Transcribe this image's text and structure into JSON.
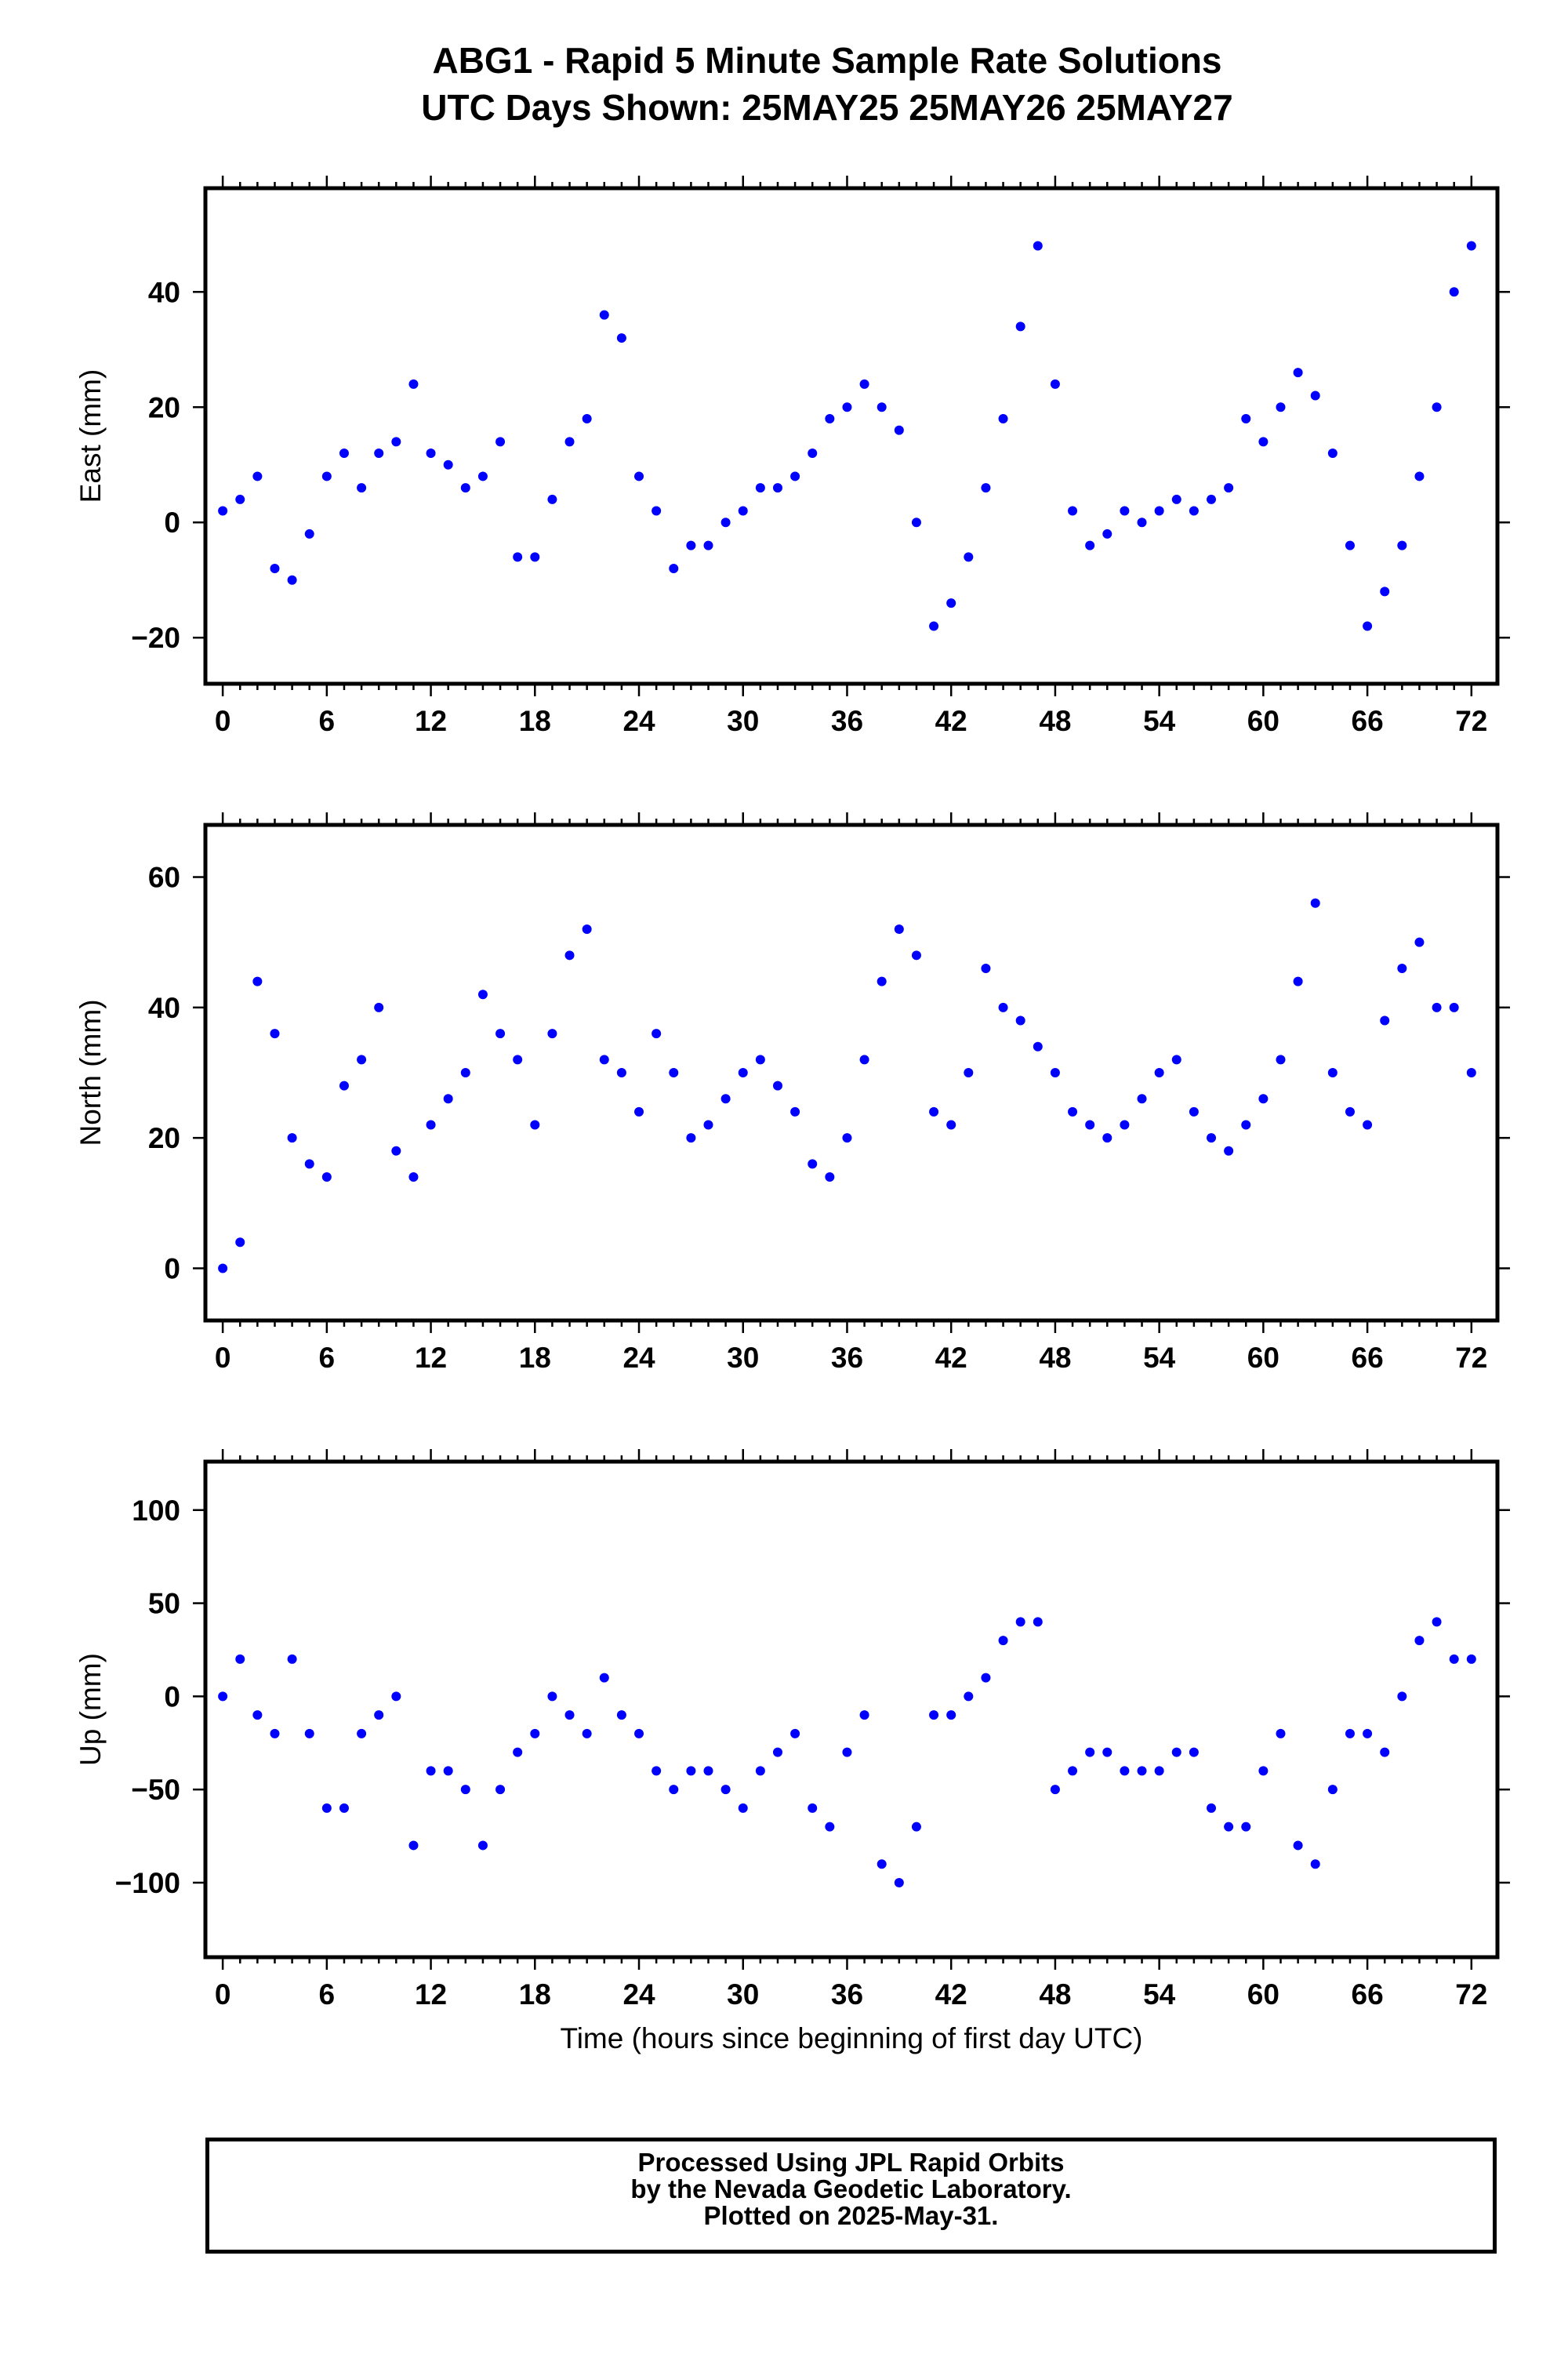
{
  "title": {
    "line1": "ABG1 - Rapid 5 Minute Sample Rate Solutions",
    "line2": "UTC Days Shown:  25MAY25 25MAY26 25MAY27"
  },
  "footer": {
    "line1": "Processed Using JPL Rapid Orbits",
    "line2": "by the Nevada Geodetic Laboratory.",
    "line3": "Plotted on 2025-May-31."
  },
  "colors": {
    "points": "#0000ff",
    "frame": "#000000"
  },
  "chart_data": [
    {
      "type": "scatter",
      "ylabel": "East (mm)",
      "xlabel": "",
      "xlim": [
        -1,
        73.5
      ],
      "ylim": [
        -28,
        58
      ],
      "xticks": [
        0,
        6,
        12,
        18,
        24,
        30,
        36,
        42,
        48,
        54,
        60,
        66,
        72
      ],
      "yticks": [
        -20,
        0,
        20,
        40
      ],
      "grid": false,
      "x": [
        0,
        1,
        2,
        3,
        4,
        5,
        6,
        7,
        8,
        9,
        10,
        11,
        12,
        13,
        14,
        15,
        16,
        17,
        18,
        19,
        20,
        21,
        22,
        23,
        24,
        25,
        26,
        27,
        28,
        29,
        30,
        31,
        32,
        33,
        34,
        35,
        36,
        37,
        38,
        39,
        40,
        41,
        42,
        43,
        44,
        45,
        46,
        47,
        48,
        49,
        50,
        51,
        52,
        53,
        54,
        55,
        56,
        57,
        58,
        59,
        60,
        61,
        62,
        63,
        64,
        65,
        66,
        67,
        68,
        69,
        70,
        71,
        72
      ],
      "y": [
        2,
        4,
        8,
        -8,
        -10,
        -2,
        8,
        12,
        6,
        12,
        14,
        24,
        12,
        10,
        6,
        8,
        14,
        -6,
        -6,
        4,
        14,
        18,
        36,
        32,
        8,
        2,
        -8,
        -4,
        -4,
        0,
        2,
        6,
        6,
        8,
        12,
        18,
        20,
        24,
        20,
        16,
        0,
        -18,
        -14,
        -6,
        6,
        18,
        34,
        48,
        24,
        2,
        -4,
        -2,
        2,
        0,
        2,
        4,
        2,
        4,
        6,
        18,
        14,
        20,
        26,
        22,
        12,
        -4,
        -18,
        -12,
        -4,
        8,
        20,
        40,
        48
      ]
    },
    {
      "type": "scatter",
      "ylabel": "North (mm)",
      "xlabel": "",
      "xlim": [
        -1,
        73.5
      ],
      "ylim": [
        -8,
        68
      ],
      "xticks": [
        0,
        6,
        12,
        18,
        24,
        30,
        36,
        42,
        48,
        54,
        60,
        66,
        72
      ],
      "yticks": [
        0,
        20,
        40,
        60
      ],
      "grid": false,
      "x": [
        0,
        1,
        2,
        3,
        4,
        5,
        6,
        7,
        8,
        9,
        10,
        11,
        12,
        13,
        14,
        15,
        16,
        17,
        18,
        19,
        20,
        21,
        22,
        23,
        24,
        25,
        26,
        27,
        28,
        29,
        30,
        31,
        32,
        33,
        34,
        35,
        36,
        37,
        38,
        39,
        40,
        41,
        42,
        43,
        44,
        45,
        46,
        47,
        48,
        49,
        50,
        51,
        52,
        53,
        54,
        55,
        56,
        57,
        58,
        59,
        60,
        61,
        62,
        63,
        64,
        65,
        66,
        67,
        68,
        69,
        70,
        71,
        72
      ],
      "y": [
        0,
        4,
        44,
        36,
        20,
        16,
        14,
        28,
        32,
        40,
        18,
        14,
        22,
        26,
        30,
        42,
        36,
        32,
        22,
        36,
        48,
        52,
        32,
        30,
        24,
        36,
        30,
        20,
        22,
        26,
        30,
        32,
        28,
        24,
        16,
        14,
        20,
        32,
        44,
        52,
        48,
        24,
        22,
        30,
        46,
        40,
        38,
        34,
        30,
        24,
        22,
        20,
        22,
        26,
        30,
        32,
        24,
        20,
        18,
        22,
        26,
        32,
        44,
        56,
        30,
        24,
        22,
        38,
        46,
        50,
        40,
        40,
        30
      ]
    },
    {
      "type": "scatter",
      "ylabel": "Up (mm)",
      "xlabel": "Time (hours since beginning of first day UTC)",
      "xlim": [
        -1,
        73.5
      ],
      "ylim": [
        -140,
        126
      ],
      "xticks": [
        0,
        6,
        12,
        18,
        24,
        30,
        36,
        42,
        48,
        54,
        60,
        66,
        72
      ],
      "yticks": [
        -100,
        -50,
        0,
        50,
        100
      ],
      "grid": false,
      "x": [
        0,
        1,
        2,
        3,
        4,
        5,
        6,
        7,
        8,
        9,
        10,
        11,
        12,
        13,
        14,
        15,
        16,
        17,
        18,
        19,
        20,
        21,
        22,
        23,
        24,
        25,
        26,
        27,
        28,
        29,
        30,
        31,
        32,
        33,
        34,
        35,
        36,
        37,
        38,
        39,
        40,
        41,
        42,
        43,
        44,
        45,
        46,
        47,
        48,
        49,
        50,
        51,
        52,
        53,
        54,
        55,
        56,
        57,
        58,
        59,
        60,
        61,
        62,
        63,
        64,
        65,
        66,
        67,
        68,
        69,
        70,
        71,
        72
      ],
      "y": [
        0,
        20,
        -10,
        -20,
        20,
        -20,
        -60,
        -60,
        -20,
        -10,
        0,
        -80,
        -40,
        -40,
        -50,
        -80,
        -50,
        -30,
        -20,
        0,
        -10,
        -20,
        10,
        -10,
        -20,
        -40,
        -50,
        -40,
        -40,
        -50,
        -60,
        -40,
        -30,
        -20,
        -60,
        -70,
        -30,
        -10,
        -90,
        -100,
        -70,
        -10,
        -10,
        0,
        10,
        30,
        40,
        40,
        -50,
        -40,
        -30,
        -30,
        -40,
        -40,
        -40,
        -30,
        -30,
        -60,
        -70,
        -70,
        -40,
        -20,
        -80,
        -90,
        -50,
        -20,
        -20,
        -30,
        0,
        30,
        40,
        20,
        20
      ]
    }
  ]
}
